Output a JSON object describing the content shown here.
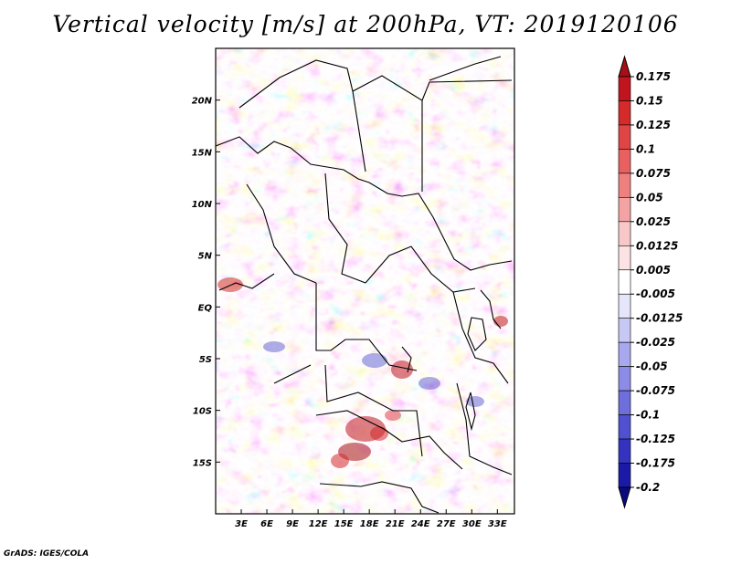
{
  "chart_data": {
    "type": "heatmap",
    "title": "Vertical velocity [m/s] at 200hPa, VT: 2019120106",
    "xlabel": "",
    "ylabel": "",
    "x_ticks": [
      "3E",
      "6E",
      "9E",
      "12E",
      "15E",
      "18E",
      "21E",
      "24E",
      "27E",
      "30E",
      "33E"
    ],
    "y_ticks": [
      "20N",
      "15N",
      "10N",
      "5N",
      "EQ",
      "5S",
      "10S",
      "15S"
    ],
    "x_range": [
      0,
      35
    ],
    "y_range": [
      -20,
      25
    ],
    "colorbar": {
      "levels": [
        "0.175",
        "0.15",
        "0.125",
        "0.1",
        "0.075",
        "0.05",
        "0.025",
        "0.0125",
        "0.005",
        "-0.005",
        "-0.0125",
        "-0.025",
        "-0.05",
        "-0.075",
        "-0.1",
        "-0.125",
        "-0.175",
        "-0.2"
      ],
      "colors": [
        "#a50f15",
        "#c0151f",
        "#d42a2a",
        "#e04545",
        "#e86060",
        "#ee8080",
        "#f3a3a3",
        "#f8c8c8",
        "#fce2e2",
        "#ffffff",
        "#e6e6fb",
        "#c8c8f5",
        "#a8a8ee",
        "#8c8ce6",
        "#6e6edc",
        "#5050d0",
        "#3333c0",
        "#1a1aa6",
        "#0a0a80"
      ]
    }
  },
  "footer": "GrADS: IGES/COLA"
}
